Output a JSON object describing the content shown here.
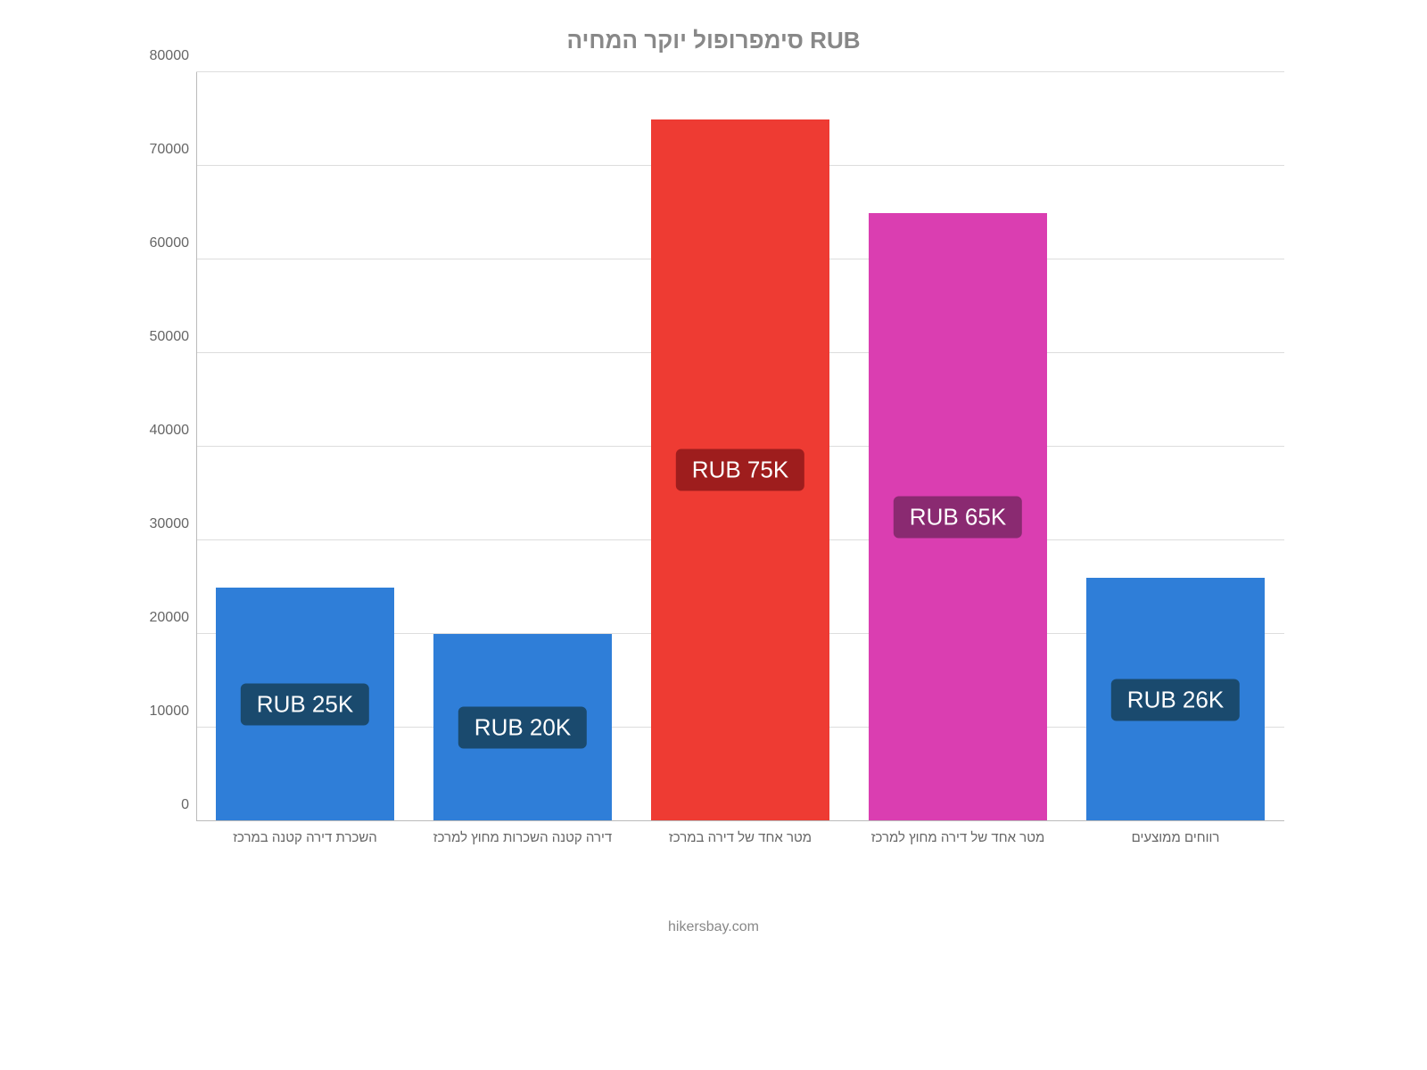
{
  "chart": {
    "type": "bar",
    "title": "סימפרופול יוקר המחיה RUB",
    "title_fontsize": 26,
    "title_color": "#888888",
    "background_color": "#ffffff",
    "y": {
      "min": 0,
      "max": 80000,
      "step": 10000,
      "ticks": [
        "0",
        "10000",
        "20000",
        "30000",
        "40000",
        "50000",
        "60000",
        "70000",
        "80000"
      ],
      "tick_fontsize": 16,
      "tick_color": "#666666"
    },
    "grid_color": "#dddddd",
    "axis_line_color": "#bbbbbb",
    "bar_width_ratio": 0.82,
    "categories": [
      "השכרת דירה קטנה במרכז",
      "דירה קטנה השכרות מחוץ למרכז",
      "מטר אחד של דירה במרכז",
      "מטר אחד של דירה מחוץ למרכז",
      "רווחים ממוצעים"
    ],
    "x_label_fontsize": 15,
    "x_label_color": "#666666",
    "values": [
      25000,
      20000,
      75000,
      65000,
      26000
    ],
    "bar_colors": [
      "#2f7ed8",
      "#2f7ed8",
      "#ee3b33",
      "#da3eb1",
      "#2f7ed8"
    ],
    "bar_labels": [
      "RUB 25K",
      "RUB 20K",
      "RUB 75K",
      "RUB 65K",
      "RUB 26K"
    ],
    "bar_label_bg": [
      "#1a4a6e",
      "#1a4a6e",
      "#9e1d1d",
      "#8a2a71",
      "#1a4a6e"
    ],
    "bar_label_fontsize": 26,
    "bar_label_color": "#ffffff",
    "footer": "hikersbay.com",
    "footer_fontsize": 16,
    "footer_color": "#888888"
  }
}
